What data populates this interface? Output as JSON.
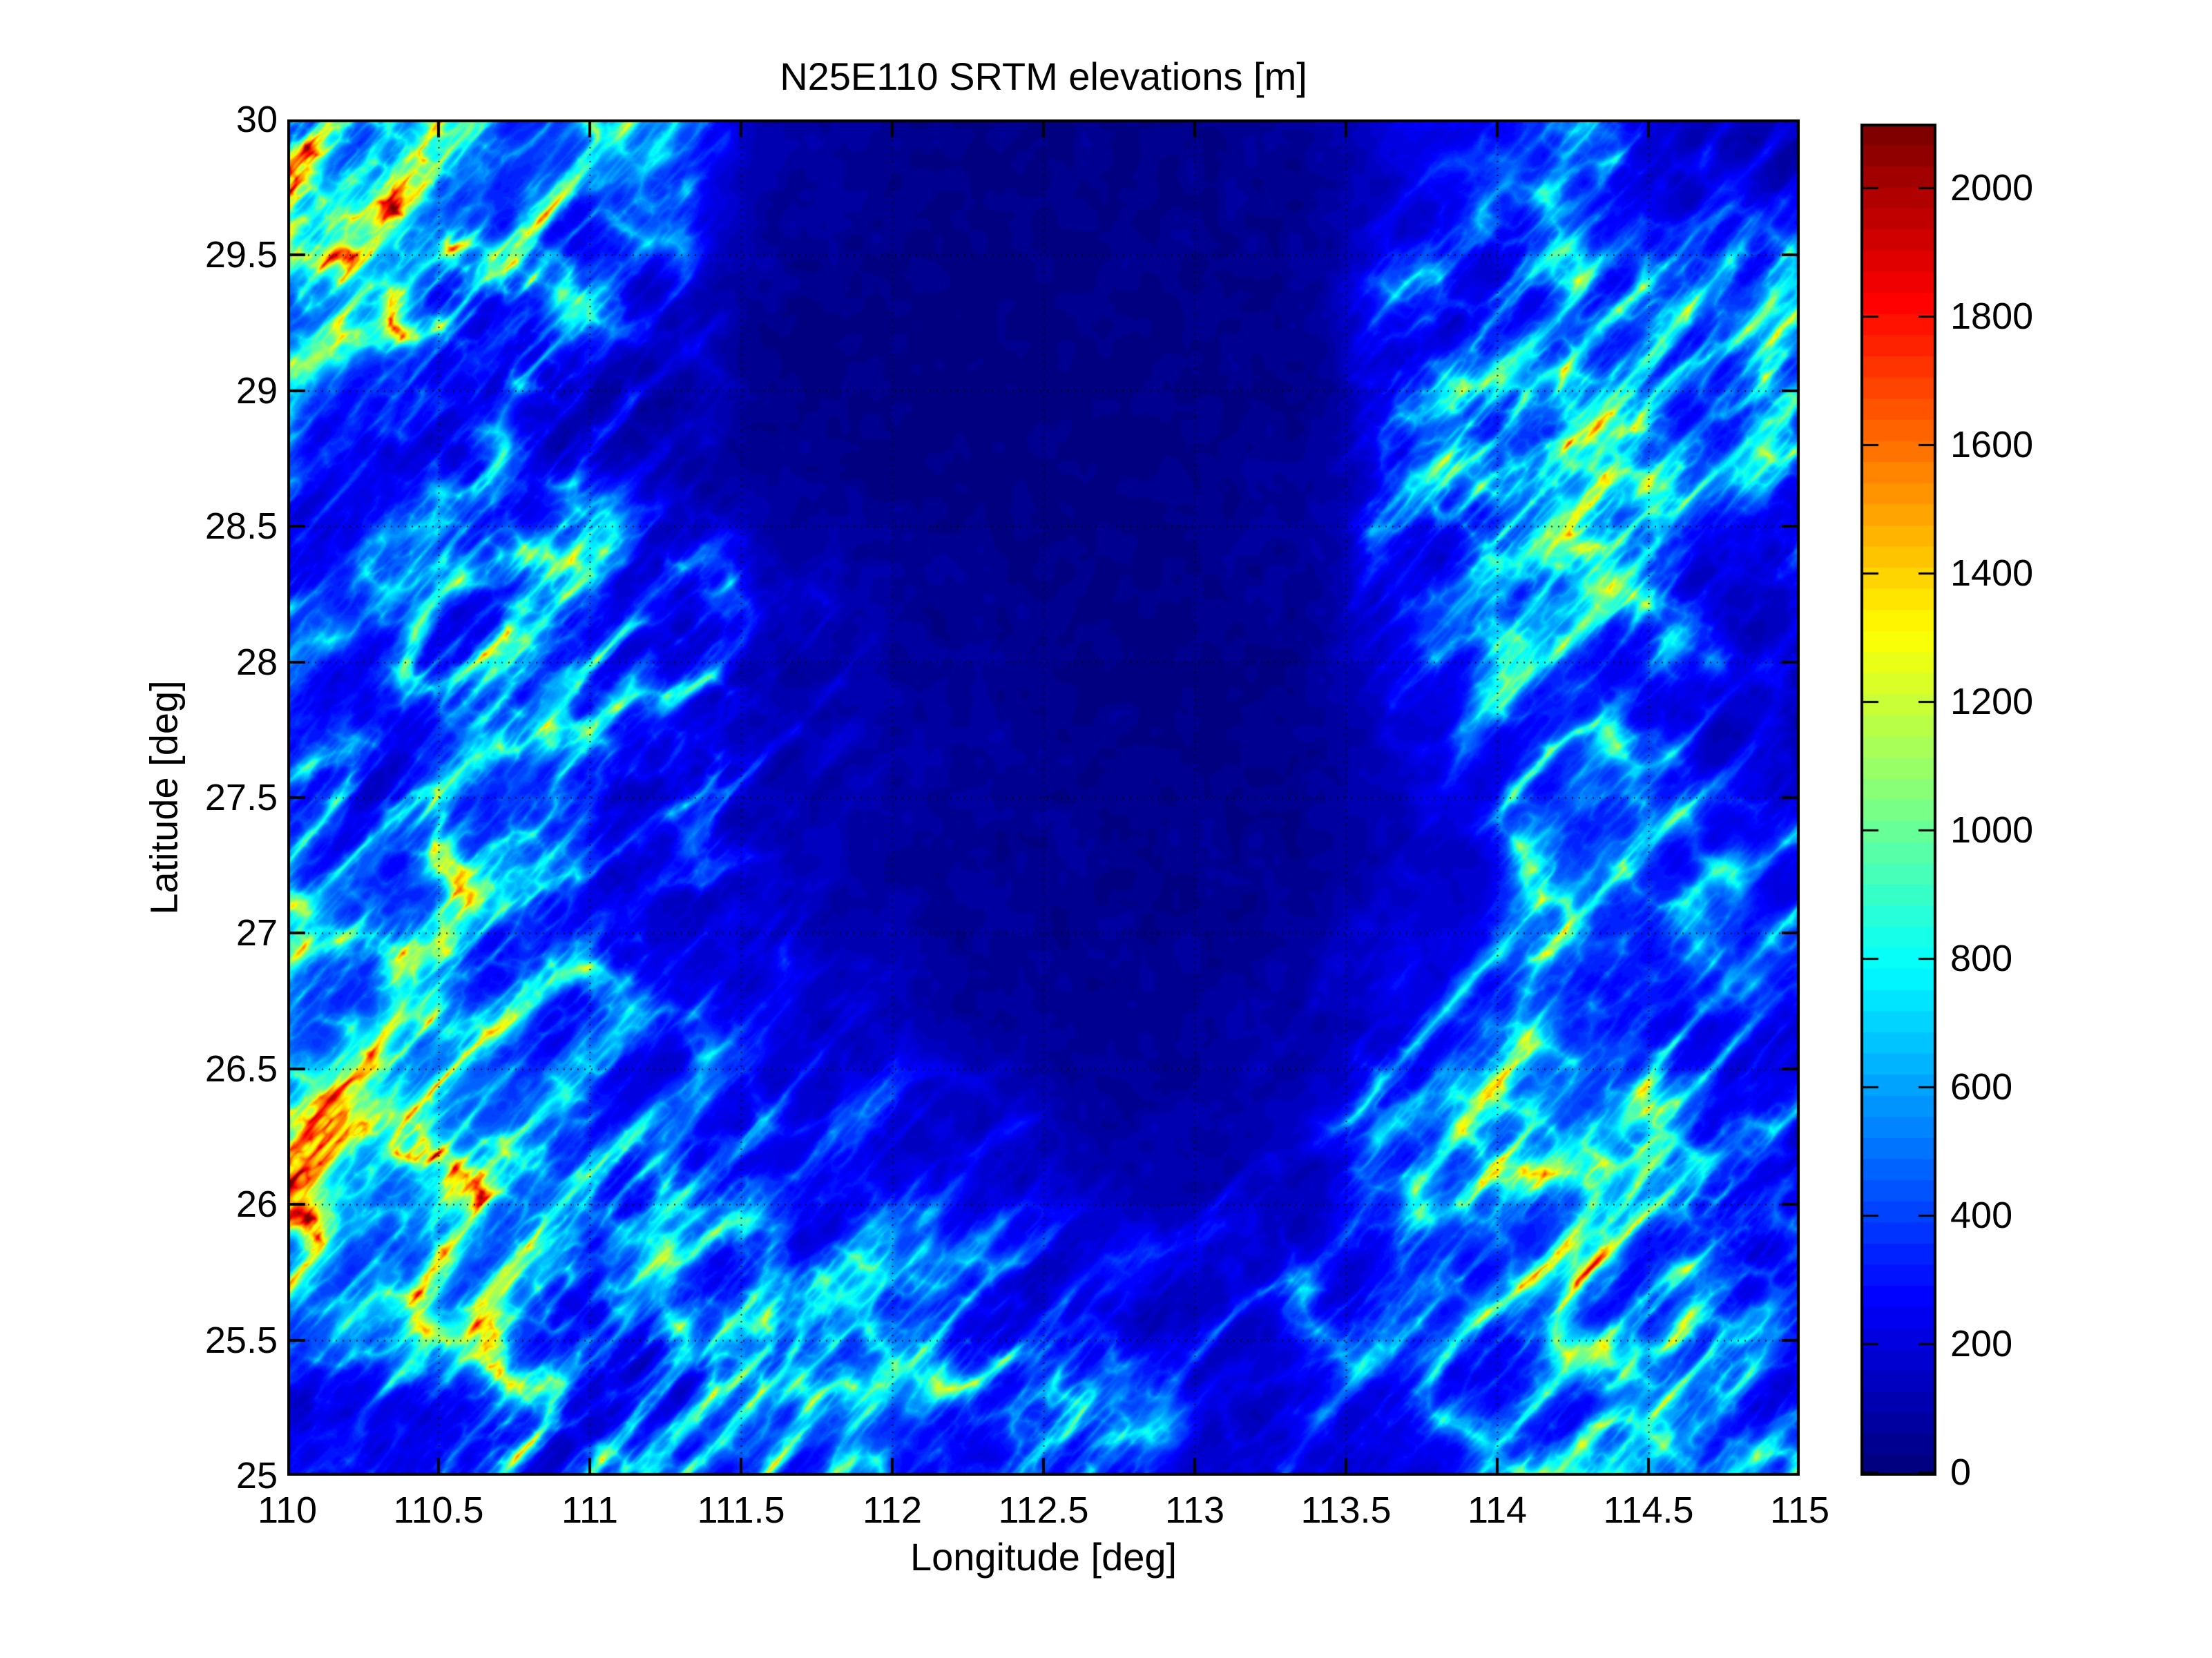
{
  "figure": {
    "background_color": "#ffffff",
    "frame_color": "#000000",
    "grid_style": "dotted black graticule every 0.5 deg"
  },
  "chart_data": {
    "type": "heatmap",
    "title": "N25E110 SRTM elevations [m]",
    "xlabel": "Longitude [deg]",
    "ylabel": "Latitude [deg]",
    "x_range": [
      110,
      115
    ],
    "y_range": [
      25,
      30
    ],
    "x_ticks": [
      "110",
      "110.5",
      "111",
      "111.5",
      "112",
      "112.5",
      "113",
      "113.5",
      "114",
      "114.5",
      "115"
    ],
    "y_ticks": [
      "30",
      "29.5",
      "29",
      "28.5",
      "28",
      "27.5",
      "27",
      "26.5",
      "26",
      "25.5",
      "25"
    ],
    "grid": "on (dotted, 0.5 deg spacing)",
    "colormap": "jet",
    "n_colors": 64,
    "colorbar": {
      "position": "right",
      "units": "m",
      "vmin": 0,
      "vmax": 2106,
      "ticks": [
        "0",
        "200",
        "400",
        "600",
        "800",
        "1000",
        "1200",
        "1400",
        "1600",
        "1800",
        "2000"
      ],
      "tick_values": [
        0,
        200,
        400,
        600,
        800,
        1000,
        1200,
        1400,
        1600,
        1800,
        2000
      ]
    },
    "elevation_grid_m": {
      "description": "Approximate mean SRTM elevation (meters) per 0.5x0.5 deg cell read from the map; rows north (30N) to south (25N), columns west (110E) to east (115E).",
      "lat_cell_centers": [
        29.75,
        29.25,
        28.75,
        28.25,
        27.75,
        27.25,
        26.75,
        26.25,
        25.75,
        25.25
      ],
      "lon_cell_centers": [
        110.25,
        110.75,
        111.25,
        111.75,
        112.25,
        112.75,
        113.25,
        113.75,
        114.25,
        114.75
      ],
      "values": [
        [
          950,
          720,
          420,
          120,
          70,
          60,
          110,
          300,
          420,
          300
        ],
        [
          680,
          520,
          330,
          100,
          60,
          65,
          140,
          420,
          560,
          520
        ],
        [
          420,
          420,
          300,
          180,
          75,
          70,
          160,
          520,
          640,
          480
        ],
        [
          380,
          550,
          420,
          320,
          130,
          80,
          130,
          420,
          560,
          330
        ],
        [
          420,
          750,
          470,
          290,
          170,
          95,
          110,
          300,
          520,
          300
        ],
        [
          520,
          820,
          430,
          240,
          140,
          120,
          160,
          260,
          560,
          420
        ],
        [
          620,
          520,
          380,
          300,
          210,
          150,
          220,
          380,
          520,
          360
        ],
        [
          880,
          800,
          420,
          380,
          310,
          210,
          260,
          520,
          820,
          400
        ],
        [
          700,
          880,
          520,
          430,
          380,
          310,
          380,
          470,
          700,
          470
        ],
        [
          320,
          620,
          480,
          560,
          520,
          420,
          330,
          420,
          520,
          460
        ]
      ]
    },
    "features": [
      "Very low flat basin (dark navy, < ~150 m) across the north-center of the map (~111.8-113.8E, 28-30N) with meandering river traces",
      "High NE-SW trending ridges in the northwest corner with orange/red crests above ~1500 m",
      "Western mountain massif near 110.8E, 27.3-28.2N with yellow/orange core",
      "Extensive southwest mountains (110-111.5E, 25.3-26.6N) with many red ridge crests ~1500-1900 m",
      "Southern mountain clusters near 112E and 113E around 25.2-25.7N (yellow/orange)",
      "Southeast massif near 114E, 25.7-26.6N with red peaks",
      "Eastern mountain belt of NE-SW ridges along 113.5-115E with scattered yellow/red crests"
    ]
  }
}
